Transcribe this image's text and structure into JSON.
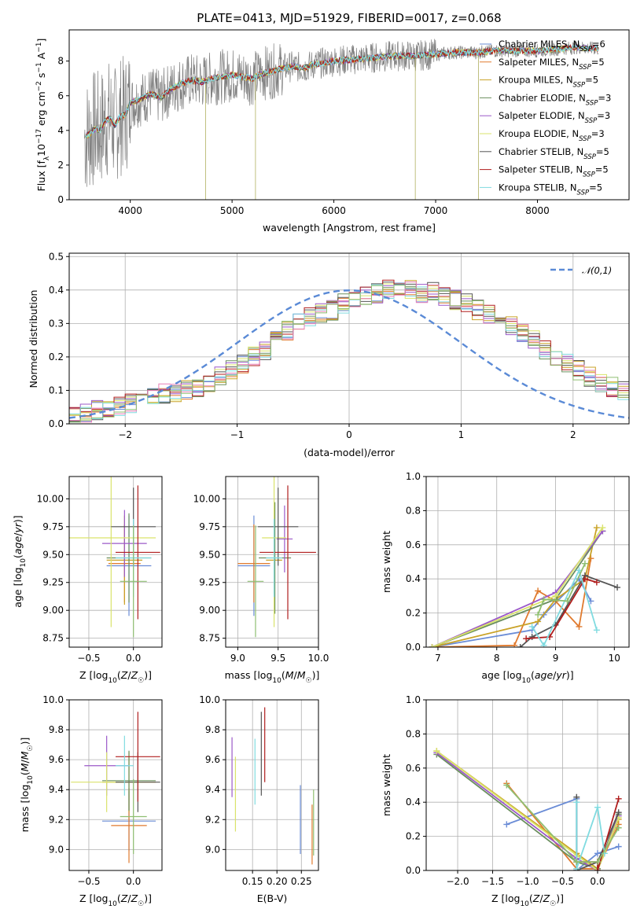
{
  "figure_title": "PLATE=0413, MJD=51929, FIBERID=0017, z=0.068",
  "colors": {
    "data_gray": "#808080",
    "series": [
      "#6a8cd6",
      "#e07a2e",
      "#c9a227",
      "#6b8f5e",
      "#9b59c9",
      "#d9e36b",
      "#555555",
      "#b01e1e",
      "#80dbe0"
    ],
    "hist_extra": [
      "#e87fb8",
      "#8fbf72"
    ]
  },
  "legend_entries": [
    {
      "pre": "Chabrier MILES, N",
      "sub": "SSP",
      "post": "=6"
    },
    {
      "pre": "Salpeter MILES, N",
      "sub": "SSP",
      "post": "=5"
    },
    {
      "pre": "Kroupa MILES, N",
      "sub": "SSP",
      "post": "=5"
    },
    {
      "pre": "Chabrier ELODIE, N",
      "sub": "SSP",
      "post": "=3"
    },
    {
      "pre": "Salpeter ELODIE, N",
      "sub": "SSP",
      "post": "=3"
    },
    {
      "pre": "Kroupa ELODIE, N",
      "sub": "SSP",
      "post": "=3"
    },
    {
      "pre": "Chabrier STELIB, N",
      "sub": "SSP",
      "post": "=5"
    },
    {
      "pre": "Salpeter STELIB, N",
      "sub": "SSP",
      "post": "=5"
    },
    {
      "pre": "Kroupa STELIB, N",
      "sub": "SSP",
      "post": "=5"
    }
  ],
  "chart_data": [
    {
      "id": "spectrum",
      "type": "line",
      "xlabel": "wavelength [Angstrom, rest frame]",
      "ylabel_parts": {
        "a": "Flux [f",
        "b": "λ",
        "c": "10",
        "d": "−17",
        "e": " erg cm",
        "f": "−2",
        "g": " s",
        "h": "−1",
        "i": " A",
        "j": "−1",
        "k": "]"
      },
      "xlim": [
        3400,
        8900
      ],
      "ylim": [
        0,
        9.8
      ],
      "xticks": [
        4000,
        5000,
        6000,
        7000,
        8000
      ],
      "yticks": [
        0,
        2,
        4,
        6,
        8
      ],
      "model_x": [
        3550,
        3600,
        3650,
        3700,
        3750,
        3800,
        3850,
        3900,
        3950,
        4000,
        4100,
        4200,
        4300,
        4400,
        4500,
        4600,
        4700,
        4800,
        4900,
        5000,
        5100,
        5200,
        5300,
        5400,
        5500,
        5600,
        5700,
        5800,
        5900,
        6000,
        6200,
        6400,
        6600,
        6800,
        7000,
        7200,
        7400,
        7600,
        7800,
        8000,
        8200,
        8400,
        8600
      ],
      "model_y": [
        3.6,
        3.8,
        4.1,
        4.0,
        4.5,
        4.7,
        4.3,
        4.8,
        4.9,
        5.6,
        5.8,
        6.1,
        5.9,
        6.4,
        6.7,
        6.9,
        6.8,
        7.0,
        7.1,
        7.2,
        7.1,
        7.0,
        7.3,
        7.4,
        7.6,
        7.7,
        7.6,
        7.8,
        7.9,
        8.0,
        8.1,
        8.2,
        8.3,
        8.3,
        8.4,
        8.5,
        8.5,
        8.6,
        8.6,
        8.6,
        8.7,
        8.8,
        8.7
      ]
    },
    {
      "id": "residual_histogram",
      "type": "bar",
      "xlabel": "(data-model)/error",
      "ylabel": "Normed distribution",
      "xlim": [
        -2.5,
        2.5
      ],
      "ylim": [
        0,
        0.51
      ],
      "xticks": [
        -2,
        -1,
        0,
        1,
        2
      ],
      "xtick_labels": [
        "−2",
        "−1",
        "0",
        "1",
        "2"
      ],
      "yticks": [
        0,
        0.1,
        0.2,
        0.3,
        0.4,
        0.5
      ],
      "legend": "𝒩(0,1)",
      "bin_width": 0.1,
      "base_values": [
        0.02,
        0.03,
        0.04,
        0.05,
        0.05,
        0.06,
        0.07,
        0.08,
        0.09,
        0.09,
        0.1,
        0.11,
        0.12,
        0.14,
        0.16,
        0.18,
        0.2,
        0.22,
        0.25,
        0.28,
        0.31,
        0.32,
        0.33,
        0.34,
        0.36,
        0.37,
        0.38,
        0.39,
        0.4,
        0.4,
        0.4,
        0.39,
        0.4,
        0.38,
        0.37,
        0.36,
        0.34,
        0.33,
        0.31,
        0.29,
        0.27,
        0.25,
        0.22,
        0.2,
        0.18,
        0.16,
        0.14,
        0.12,
        0.11,
        0.1,
        0.08,
        0.07,
        0.06,
        0.05,
        0.05,
        0.04,
        0.03,
        0.03,
        0.02,
        0.02
      ]
    },
    {
      "id": "age_vs_Z",
      "type": "scatter",
      "xlabel": "Z [log10(Z/Z☉)]",
      "ylabel": "age  [log10(age/yr)]",
      "xlim": [
        -0.72,
        0.32
      ],
      "ylim": [
        8.67,
        10.2
      ],
      "xticks": [
        -0.5,
        0.0
      ],
      "xtick_labels": [
        "−0.5",
        "0.0"
      ],
      "yticks": [
        8.75,
        9.0,
        9.25,
        9.5,
        9.75,
        10.0
      ],
      "points": [
        {
          "x": -0.05,
          "y": 9.4,
          "xerr": 0.25,
          "yerr": 0.45,
          "c": 0
        },
        {
          "x": -0.1,
          "y": 9.42,
          "xerr": 0.18,
          "yerr": 0.35,
          "c": 1
        },
        {
          "x": -0.1,
          "y": 9.45,
          "xerr": 0.2,
          "yerr": 0.4,
          "c": 2
        },
        {
          "x": -0.05,
          "y": 9.47,
          "xerr": 0.25,
          "yerr": 0.4,
          "c": 3
        },
        {
          "x": -0.1,
          "y": 9.6,
          "xerr": 0.25,
          "yerr": 0.3,
          "c": 4
        },
        {
          "x": -0.25,
          "y": 9.65,
          "xerr": 0.5,
          "yerr": 0.8,
          "c": 5
        },
        {
          "x": 0.0,
          "y": 9.75,
          "xerr": 0.25,
          "yerr": 0.35,
          "c": 6
        },
        {
          "x": 0.05,
          "y": 9.52,
          "xerr": 0.25,
          "yerr": 0.6,
          "c": 7
        },
        {
          "x": 0.0,
          "y": 9.47,
          "xerr": 0.2,
          "yerr": 0.35,
          "c": 8
        },
        {
          "x": 0.0,
          "y": 9.26,
          "xerr": 0.15,
          "yerr": 0.5,
          "c": 10
        }
      ]
    },
    {
      "id": "age_vs_mass",
      "type": "scatter",
      "xlabel": "mass [log10(M/M☉)]",
      "ylabel": "",
      "xlim": [
        8.85,
        10.0
      ],
      "ylim": [
        8.67,
        10.2
      ],
      "xticks": [
        9.0,
        9.5,
        10.0
      ],
      "xtick_labels": [
        "9.0",
        "9.5",
        "10.0"
      ],
      "yticks": [
        8.75,
        9.0,
        9.25,
        9.5,
        9.75,
        10.0
      ],
      "points": [
        {
          "x": 9.2,
          "y": 9.4,
          "xerr": 0.2,
          "yerr": 0.45,
          "c": 0
        },
        {
          "x": 9.2,
          "y": 9.42,
          "xerr": 0.2,
          "yerr": 0.35,
          "c": 1
        },
        {
          "x": 9.45,
          "y": 9.45,
          "xerr": 0.1,
          "yerr": 0.3,
          "c": 2
        },
        {
          "x": 9.46,
          "y": 9.47,
          "xerr": 0.2,
          "yerr": 0.5,
          "c": 3
        },
        {
          "x": 9.58,
          "y": 9.64,
          "xerr": 0.1,
          "yerr": 0.3,
          "c": 4
        },
        {
          "x": 9.45,
          "y": 9.65,
          "xerr": 0.15,
          "yerr": 0.8,
          "c": 5
        },
        {
          "x": 9.5,
          "y": 9.75,
          "xerr": 0.25,
          "yerr": 0.35,
          "c": 6
        },
        {
          "x": 9.62,
          "y": 9.52,
          "xerr": 0.35,
          "yerr": 0.6,
          "c": 7
        },
        {
          "x": 9.45,
          "y": 9.47,
          "xerr": 0.1,
          "yerr": 0.35,
          "c": 8
        },
        {
          "x": 9.22,
          "y": 9.26,
          "xerr": 0.1,
          "yerr": 0.5,
          "c": 10
        }
      ]
    },
    {
      "id": "weight_vs_age",
      "type": "line",
      "xlabel": "age  [log10(age/yr)]",
      "ylabel": "mass weight",
      "xlim": [
        6.8,
        10.25
      ],
      "ylim": [
        0,
        1.0
      ],
      "xticks": [
        7,
        8,
        9,
        10
      ],
      "yticks": [
        0.0,
        0.2,
        0.4,
        0.6,
        0.8,
        1.0
      ],
      "series": [
        {
          "x": [
            6.9,
            8.6,
            8.8,
            9.4,
            9.6
          ],
          "y": [
            0.0,
            0.1,
            0.19,
            0.4,
            0.27
          ],
          "c": 0
        },
        {
          "x": [
            6.9,
            8.3,
            8.7,
            9.0,
            9.4,
            9.6
          ],
          "y": [
            0.0,
            0.01,
            0.33,
            0.27,
            0.12,
            0.52
          ],
          "c": 1
        },
        {
          "x": [
            6.9,
            8.7,
            9.0,
            9.5,
            9.7
          ],
          "y": [
            0.0,
            0.15,
            0.28,
            0.4,
            0.7
          ],
          "c": 2
        },
        {
          "x": [
            6.9,
            9.0,
            9.8
          ],
          "y": [
            0.0,
            0.28,
            0.68
          ],
          "c": 3
        },
        {
          "x": [
            6.9,
            9.0,
            9.8
          ],
          "y": [
            0.0,
            0.32,
            0.68
          ],
          "c": 4
        },
        {
          "x": [
            6.9,
            9.0,
            9.8
          ],
          "y": [
            0.0,
            0.3,
            0.7
          ],
          "c": 5
        },
        {
          "x": [
            8.4,
            8.6,
            9.0,
            9.5,
            10.05
          ],
          "y": [
            0.0,
            0.06,
            0.13,
            0.42,
            0.35
          ],
          "c": 6
        },
        {
          "x": [
            8.5,
            8.9,
            9.5,
            9.7
          ],
          "y": [
            0.05,
            0.06,
            0.4,
            0.38
          ],
          "c": 7
        },
        {
          "x": [
            8.6,
            8.8,
            9.4,
            9.7
          ],
          "y": [
            0.12,
            0.01,
            0.45,
            0.1
          ],
          "c": 8
        },
        {
          "x": [
            8.7,
            8.8,
            9.2,
            9.5
          ],
          "y": [
            0.19,
            0.28,
            0.27,
            0.49
          ],
          "c": 10
        }
      ]
    },
    {
      "id": "mass_vs_Z",
      "type": "scatter",
      "xlabel": "Z [log10(Z/Z☉)]",
      "ylabel": "mass [log10(M/M☉)]",
      "xlim": [
        -0.72,
        0.32
      ],
      "ylim": [
        8.86,
        10.0
      ],
      "xticks": [
        -0.5,
        0.0
      ],
      "xtick_labels": [
        "−0.5",
        "0.0"
      ],
      "yticks": [
        9.0,
        9.2,
        9.4,
        9.6,
        9.8,
        10.0
      ],
      "points": [
        {
          "x": -0.05,
          "y": 9.19,
          "xerr": 0.3,
          "yerr": 0.2,
          "c": 0
        },
        {
          "x": -0.05,
          "y": 9.16,
          "xerr": 0.2,
          "yerr": 0.25,
          "c": 1
        },
        {
          "x": -0.05,
          "y": 9.45,
          "xerr": 0.3,
          "yerr": 0.2,
          "c": 2
        },
        {
          "x": -0.05,
          "y": 9.46,
          "xerr": 0.3,
          "yerr": 0.2,
          "c": 3
        },
        {
          "x": -0.3,
          "y": 9.56,
          "xerr": 0.25,
          "yerr": 0.2,
          "c": 4
        },
        {
          "x": -0.3,
          "y": 9.45,
          "xerr": 0.4,
          "yerr": 0.2,
          "c": 5
        },
        {
          "x": 0.05,
          "y": 9.45,
          "xerr": 0.25,
          "yerr": 0.2,
          "c": 6
        },
        {
          "x": 0.05,
          "y": 9.62,
          "xerr": 0.25,
          "yerr": 0.3,
          "c": 7
        },
        {
          "x": -0.1,
          "y": 9.56,
          "xerr": 0.1,
          "yerr": 0.2,
          "c": 8
        },
        {
          "x": 0.0,
          "y": 9.22,
          "xerr": 0.15,
          "yerr": 0.25,
          "c": 10
        }
      ]
    },
    {
      "id": "mass_vs_EBV",
      "type": "scatter",
      "xlabel": "E(B-V)",
      "ylabel": "",
      "xlim": [
        0.095,
        0.285
      ],
      "ylim": [
        8.86,
        10.0
      ],
      "xticks": [
        0.15,
        0.2,
        0.25
      ],
      "xtick_labels": [
        "0.15",
        "0.20",
        "0.25"
      ],
      "yticks": [
        9.0,
        9.2,
        9.4,
        9.6,
        9.8,
        10.0
      ],
      "points": [
        {
          "x": 0.248,
          "y": 9.2,
          "yerr": 0.23,
          "c": 0
        },
        {
          "x": 0.272,
          "y": 9.1,
          "yerr": 0.2,
          "c": 1
        },
        {
          "x": 0.115,
          "y": 9.37,
          "yerr": 0.25,
          "c": 5
        },
        {
          "x": 0.108,
          "y": 9.55,
          "yerr": 0.2,
          "c": 4
        },
        {
          "x": 0.155,
          "y": 9.52,
          "yerr": 0.22,
          "c": 8
        },
        {
          "x": 0.168,
          "y": 9.64,
          "yerr": 0.28,
          "c": 6
        },
        {
          "x": 0.175,
          "y": 9.7,
          "yerr": 0.25,
          "c": 7
        },
        {
          "x": 0.275,
          "y": 9.18,
          "yerr": 0.22,
          "c": 10
        }
      ]
    },
    {
      "id": "weight_vs_Z",
      "type": "line",
      "xlabel": "Z [log10(Z/Z☉)]",
      "ylabel": "mass weight",
      "xlim": [
        -2.45,
        0.45
      ],
      "ylim": [
        0,
        1.0
      ],
      "xticks": [
        -2.0,
        -1.5,
        -1.0,
        -0.5,
        0.0
      ],
      "xtick_labels": [
        "−2.0",
        "−1.5",
        "−1.0",
        "−0.5",
        "0.0"
      ],
      "yticks": [
        0.0,
        0.2,
        0.4,
        0.6,
        0.8,
        1.0
      ],
      "series": [
        {
          "x": [
            -1.3,
            -0.3,
            -0.3,
            0.0,
            0.3
          ],
          "y": [
            0.27,
            0.42,
            0.0,
            0.1,
            0.14
          ],
          "c": 0
        },
        {
          "x": [
            -1.3,
            -0.3,
            0.0,
            0.3
          ],
          "y": [
            0.51,
            0.01,
            0.01,
            0.27
          ],
          "c": 1
        },
        {
          "x": [
            -2.3,
            -0.3,
            0.0,
            0.3
          ],
          "y": [
            0.7,
            0.1,
            0.01,
            0.3
          ],
          "c": 2
        },
        {
          "x": [
            -2.3,
            -0.3,
            0.0,
            0.3
          ],
          "y": [
            0.68,
            0.05,
            0.01,
            0.33
          ],
          "c": 3
        },
        {
          "x": [
            -2.3,
            -0.3,
            0.0,
            0.3
          ],
          "y": [
            0.69,
            0.07,
            0.0,
            0.32
          ],
          "c": 4
        },
        {
          "x": [
            -2.3,
            -0.3,
            0.0,
            0.3
          ],
          "y": [
            0.7,
            0.09,
            0.0,
            0.31
          ],
          "c": 5
        },
        {
          "x": [
            -0.3,
            -0.3,
            0.0,
            0.3
          ],
          "y": [
            0.43,
            0.0,
            0.05,
            0.34
          ],
          "c": 6
        },
        {
          "x": [
            -0.3,
            0.0,
            0.0,
            0.3
          ],
          "y": [
            0.05,
            0.05,
            0.0,
            0.42
          ],
          "c": 7
        },
        {
          "x": [
            -0.3,
            -0.3,
            0.0,
            0.1
          ],
          "y": [
            0.4,
            0.01,
            0.37,
            0.1
          ],
          "c": 8
        },
        {
          "x": [
            -1.3,
            -0.3,
            0.0,
            0.3
          ],
          "y": [
            0.5,
            0.05,
            0.05,
            0.25
          ],
          "c": 10
        }
      ]
    }
  ]
}
